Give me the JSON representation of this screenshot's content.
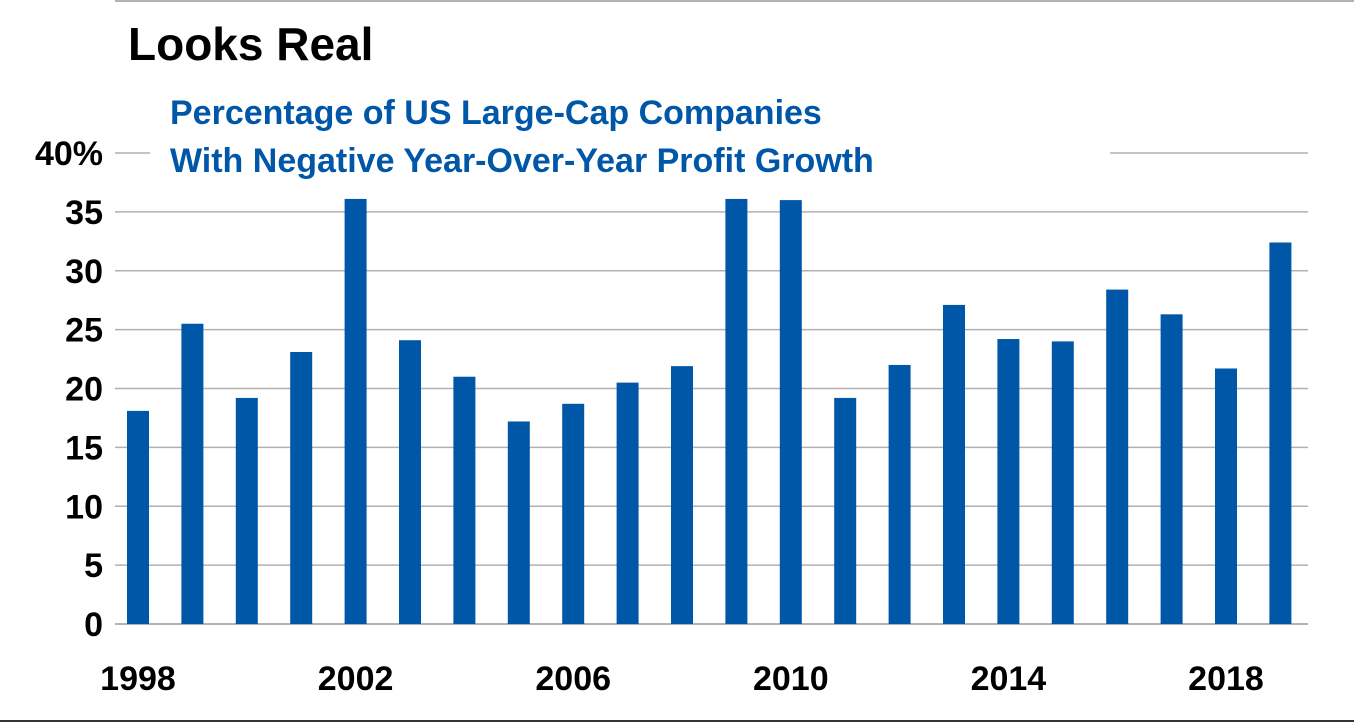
{
  "chart_data": {
    "type": "bar",
    "title": "Looks Real",
    "subtitle": [
      "Percentage of US Large-Cap Companies",
      "With Negative Year-Over-Year Profit Growth"
    ],
    "xlabel": "",
    "ylabel": "",
    "categories": [
      1998,
      1999,
      2000,
      2001,
      2002,
      2003,
      2004,
      2005,
      2006,
      2007,
      2008,
      2009,
      2010,
      2011,
      2012,
      2013,
      2014,
      2015,
      2016,
      2017,
      2018,
      2019
    ],
    "values": [
      18.1,
      25.5,
      19.2,
      23.1,
      36.1,
      24.1,
      21.0,
      17.2,
      18.7,
      20.5,
      21.9,
      36.1,
      36.0,
      19.2,
      22.0,
      27.1,
      24.2,
      24.0,
      28.4,
      26.3,
      21.7,
      32.4
    ],
    "ylim": [
      0,
      40
    ],
    "y_ticks": [
      "0",
      "5",
      "10",
      "15",
      "20",
      "25",
      "30",
      "35",
      "40%"
    ],
    "x_tick_labels": [
      "1998",
      "2002",
      "2006",
      "2010",
      "2014",
      "2018"
    ],
    "grid": true,
    "bar_color": "#0057a8",
    "subtitle_color": "#0057a8"
  }
}
